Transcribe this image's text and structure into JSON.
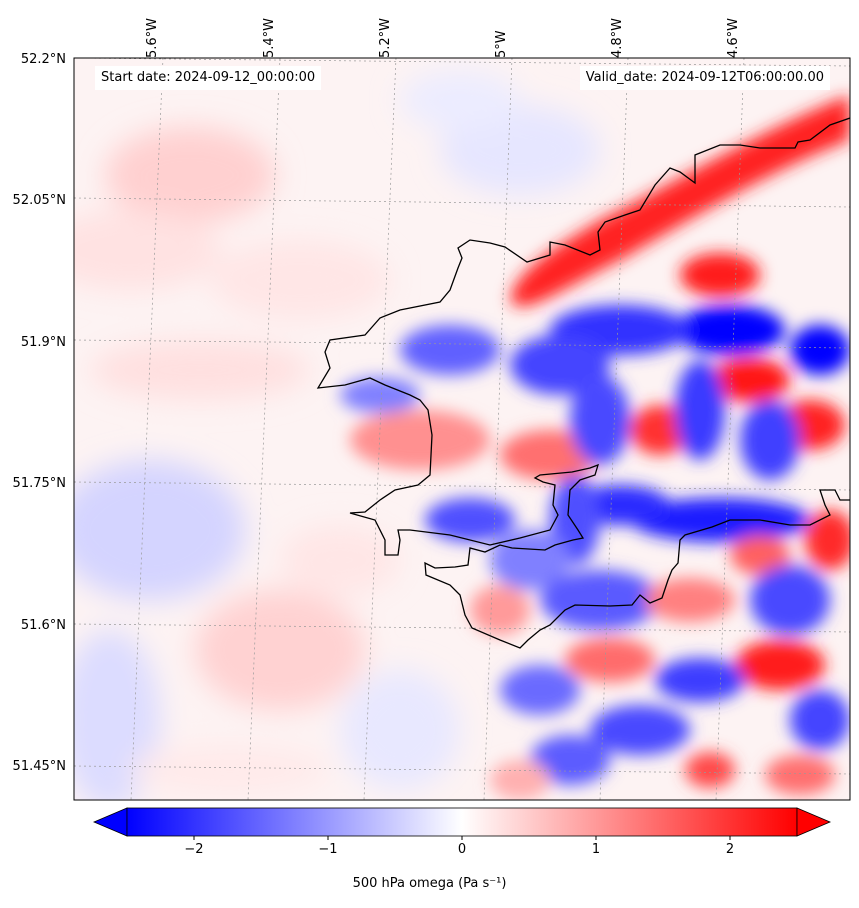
{
  "map": {
    "start_date_text": "Start date: 2024-09-12_00:00:00",
    "valid_date_text": "Valid_date: 2024-09-12T06:00:00.00",
    "lat_labels": [
      "52.2°N",
      "52.05°N",
      "51.9°N",
      "51.75°N",
      "51.6°N",
      "51.45°N"
    ],
    "lon_labels": [
      "5.6°W",
      "5.4°W",
      "5.2°W",
      "5°W",
      "4.8°W",
      "4.6°W"
    ],
    "field_description": "500 hPa omega (vertical velocity) filled contours over southwest Wales",
    "colormap": {
      "negative": "#0000ff",
      "zero": "#ffffff",
      "positive": "#ff0000"
    },
    "coastline_color": "#000000",
    "gridline_style": "dotted grey"
  },
  "colorbar": {
    "ticks": [
      "−2",
      "−1",
      "0",
      "1",
      "2"
    ],
    "tick_values": [
      -2,
      -1,
      0,
      1,
      2
    ],
    "range": [
      -2.5,
      2.5
    ],
    "extend": "both",
    "label": "500 hPa omega (Pa s⁻¹)"
  }
}
